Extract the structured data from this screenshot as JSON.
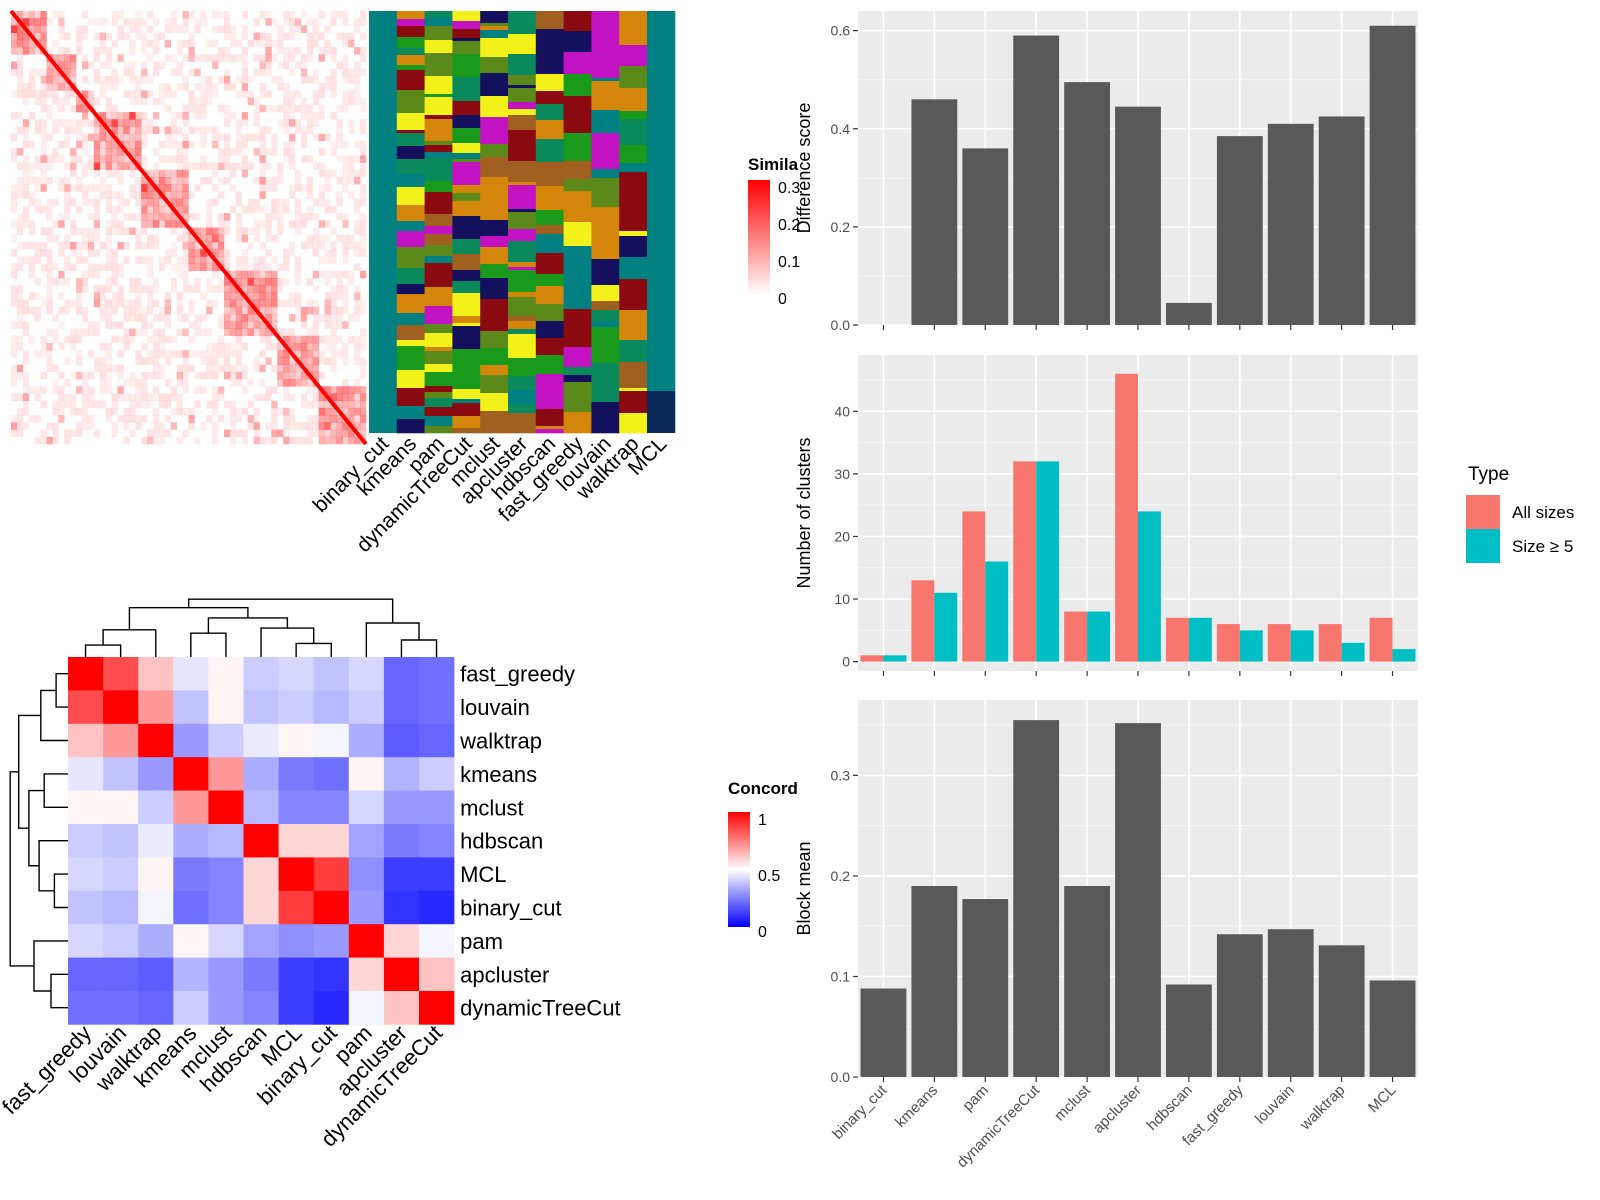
{
  "similarity_legend": {
    "title": "Simila",
    "ticks": [
      "0.3",
      "0.2",
      "0.1",
      "0"
    ]
  },
  "concordance_legend": {
    "title": "Concord",
    "ticks": [
      "1",
      "0.5",
      "0"
    ]
  },
  "colors": {
    "panel_bg": "#ebebeb",
    "bar_fill": "#595959",
    "all_sizes": "#f8766d",
    "size_ge_5": "#00bfc4",
    "sim_high": "#ff0000",
    "conc_high": "#ff0000",
    "conc_mid": "#ffffff",
    "conc_low": "#0000ff"
  },
  "chart_data": [
    {
      "type": "heatmap",
      "description_key": "cell-similarity",
      "legend_title": "Simila",
      "scale": [
        0,
        0.3
      ]
    },
    {
      "type": "heatmap",
      "description_key": "cluster-assignments",
      "columns": [
        "binary_cut",
        "kmeans",
        "pam",
        "dynamicTreeCut",
        "mclust",
        "apcluster",
        "hdbscan",
        "fast_greedy",
        "louvain",
        "walktrap",
        "MCL"
      ]
    },
    {
      "type": "heatmap",
      "description_key": "concordance",
      "legend_title": "Concord",
      "row_labels": [
        "fast_greedy",
        "louvain",
        "walktrap",
        "kmeans",
        "mclust",
        "hdbscan",
        "MCL",
        "binary_cut",
        "pam",
        "apcluster",
        "dynamicTreeCut"
      ],
      "col_labels": [
        "fast_greedy",
        "louvain",
        "walktrap",
        "kmeans",
        "mclust",
        "hdbscan",
        "MCL",
        "binary_cut",
        "pam",
        "apcluster",
        "dynamicTreeCut"
      ],
      "values": [
        [
          1.0,
          0.85,
          0.62,
          0.45,
          0.52,
          0.4,
          0.42,
          0.38,
          0.42,
          0.2,
          0.22
        ],
        [
          0.85,
          1.0,
          0.7,
          0.38,
          0.52,
          0.38,
          0.4,
          0.36,
          0.4,
          0.2,
          0.22
        ],
        [
          0.62,
          0.7,
          1.0,
          0.3,
          0.4,
          0.46,
          0.52,
          0.48,
          0.34,
          0.18,
          0.2
        ],
        [
          0.45,
          0.38,
          0.3,
          1.0,
          0.7,
          0.34,
          0.24,
          0.22,
          0.52,
          0.35,
          0.4
        ],
        [
          0.52,
          0.52,
          0.4,
          0.7,
          1.0,
          0.36,
          0.26,
          0.26,
          0.42,
          0.3,
          0.3
        ],
        [
          0.4,
          0.38,
          0.46,
          0.34,
          0.36,
          1.0,
          0.58,
          0.58,
          0.32,
          0.24,
          0.26
        ],
        [
          0.42,
          0.4,
          0.52,
          0.24,
          0.26,
          0.58,
          1.0,
          0.88,
          0.28,
          0.12,
          0.12
        ],
        [
          0.38,
          0.36,
          0.48,
          0.22,
          0.26,
          0.58,
          0.88,
          1.0,
          0.3,
          0.1,
          0.08
        ],
        [
          0.42,
          0.4,
          0.34,
          0.52,
          0.42,
          0.32,
          0.28,
          0.3,
          1.0,
          0.58,
          0.48
        ],
        [
          0.2,
          0.2,
          0.18,
          0.35,
          0.3,
          0.24,
          0.12,
          0.1,
          0.58,
          1.0,
          0.62
        ],
        [
          0.22,
          0.22,
          0.2,
          0.4,
          0.3,
          0.26,
          0.12,
          0.08,
          0.48,
          0.62,
          1.0
        ]
      ],
      "scale": [
        0,
        1
      ]
    },
    {
      "type": "bar",
      "categories": [
        "binary_cut",
        "kmeans",
        "pam",
        "dynamicTreeCut",
        "mclust",
        "apcluster",
        "hdbscan",
        "fast_greedy",
        "louvain",
        "walktrap",
        "MCL"
      ],
      "values": [
        0,
        0.46,
        0.36,
        0.59,
        0.495,
        0.445,
        0.045,
        0.385,
        0.41,
        0.425,
        0.61
      ],
      "ylabel": "Difference score",
      "ylim": [
        0,
        0.64
      ],
      "yticks": [
        "0.0",
        "0.2",
        "0.4",
        "0.6"
      ]
    },
    {
      "type": "bar",
      "categories": [
        "binary_cut",
        "kmeans",
        "pam",
        "dynamicTreeCut",
        "mclust",
        "apcluster",
        "hdbscan",
        "fast_greedy",
        "louvain",
        "walktrap",
        "MCL"
      ],
      "series": [
        {
          "name": "All sizes",
          "values": [
            1,
            13,
            24,
            32,
            8,
            46,
            7,
            6,
            6,
            6,
            7
          ]
        },
        {
          "name": "Size ≥ 5",
          "values": [
            1,
            11,
            16,
            32,
            8,
            24,
            7,
            5,
            5,
            3,
            2
          ]
        }
      ],
      "ylabel": "Number of clusters",
      "ylim": [
        -1.5,
        49
      ],
      "yticks": [
        "0",
        "10",
        "20",
        "30",
        "40"
      ],
      "legend": {
        "title": "Type",
        "position": "right"
      }
    },
    {
      "type": "bar",
      "categories": [
        "binary_cut",
        "kmeans",
        "pam",
        "dynamicTreeCut",
        "mclust",
        "apcluster",
        "hdbscan",
        "fast_greedy",
        "louvain",
        "walktrap",
        "MCL"
      ],
      "values": [
        0.088,
        0.19,
        0.177,
        0.355,
        0.19,
        0.352,
        0.092,
        0.142,
        0.147,
        0.131,
        0.096
      ],
      "ylabel": "Block mean",
      "ylim": [
        0,
        0.375
      ],
      "yticks": [
        "0.0",
        "0.1",
        "0.2",
        "0.3"
      ]
    }
  ]
}
